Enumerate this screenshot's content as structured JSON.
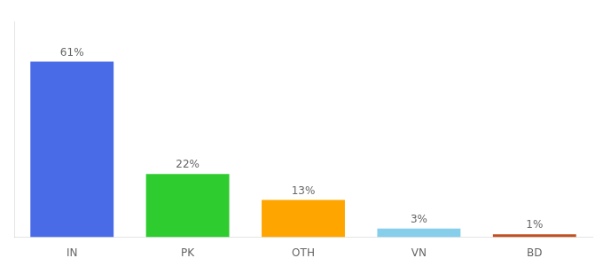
{
  "chart_data": {
    "type": "bar",
    "categories": [
      "IN",
      "PK",
      "OTH",
      "VN",
      "BD"
    ],
    "values": [
      61,
      22,
      13,
      3,
      1
    ],
    "value_labels": [
      "61%",
      "22%",
      "13%",
      "3%",
      "1%"
    ],
    "colors": [
      "#4A6BE8",
      "#2ECC2E",
      "#FFA500",
      "#87CEEB",
      "#C05020"
    ],
    "ylim": [
      0,
      75
    ],
    "tick_labels": "x",
    "data_labels": true,
    "grid": false
  }
}
